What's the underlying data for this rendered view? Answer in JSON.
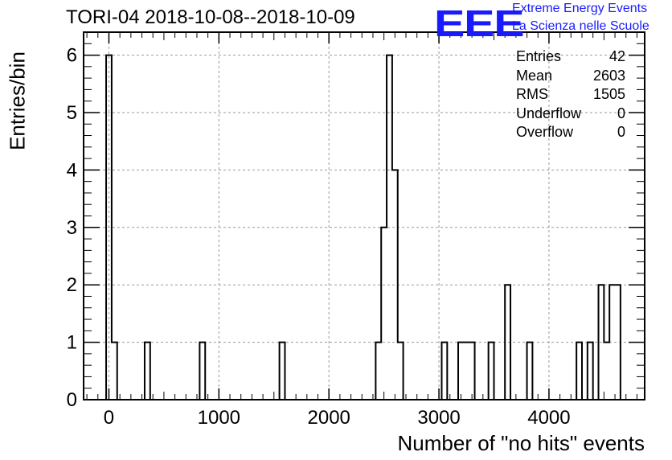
{
  "header": {
    "title": "TORI-04 2018-10-08--2018-10-09",
    "logo_text": "EEE",
    "logo_line1": "Extreme Energy Events",
    "logo_line2": "La Scienza nelle Scuole",
    "logo_color": "#1a1aff"
  },
  "stats_box": {
    "rows": [
      {
        "label": "Entries",
        "value": "42"
      },
      {
        "label": "Mean",
        "value": "2603"
      },
      {
        "label": "RMS",
        "value": "1505"
      },
      {
        "label": "Underflow",
        "value": "0"
      },
      {
        "label": "Overflow",
        "value": "0"
      }
    ]
  },
  "chart_data": {
    "type": "bar",
    "style": "step-histogram",
    "title": "TORI-04 2018-10-08--2018-10-09",
    "xlabel": "Number of \"no hits\" events",
    "ylabel": "Entries/bin",
    "xlim": [
      -230,
      4870
    ],
    "ylim": [
      0,
      6.4
    ],
    "bin_width": 50,
    "x_ticks": [
      0,
      1000,
      2000,
      3000,
      4000
    ],
    "y_ticks": [
      0,
      1,
      2,
      3,
      4,
      5,
      6
    ],
    "grid": true,
    "line_color": "#000000",
    "bins": [
      {
        "x": -25,
        "value": 6
      },
      {
        "x": 25,
        "value": 1
      },
      {
        "x": 325,
        "value": 1
      },
      {
        "x": 825,
        "value": 1
      },
      {
        "x": 1550,
        "value": 1
      },
      {
        "x": 2425,
        "value": 1
      },
      {
        "x": 2475,
        "value": 3
      },
      {
        "x": 2525,
        "value": 6
      },
      {
        "x": 2575,
        "value": 4
      },
      {
        "x": 2625,
        "value": 1
      },
      {
        "x": 3025,
        "value": 1
      },
      {
        "x": 3175,
        "value": 1
      },
      {
        "x": 3225,
        "value": 1
      },
      {
        "x": 3275,
        "value": 1
      },
      {
        "x": 3450,
        "value": 1
      },
      {
        "x": 3600,
        "value": 2
      },
      {
        "x": 3800,
        "value": 1
      },
      {
        "x": 4250,
        "value": 1
      },
      {
        "x": 4350,
        "value": 1
      },
      {
        "x": 4450,
        "value": 2
      },
      {
        "x": 4500,
        "value": 1
      },
      {
        "x": 4550,
        "value": 2
      },
      {
        "x": 4600,
        "value": 2
      }
    ]
  }
}
